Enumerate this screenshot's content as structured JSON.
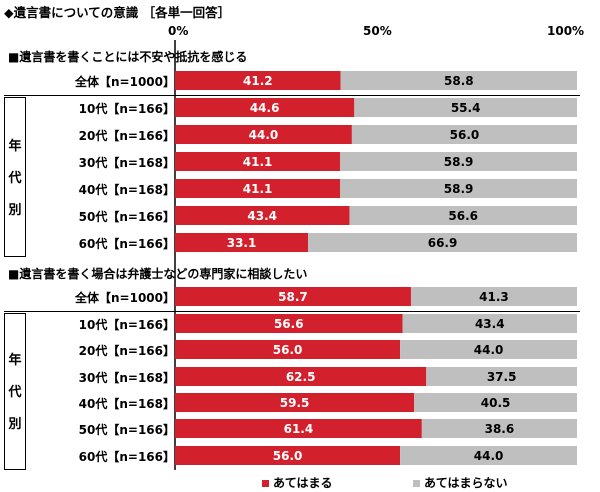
{
  "chart_data": {
    "type": "bar",
    "stacked": true,
    "orientation": "horizontal",
    "title": "◆遺言書についての意識 ［各単一回答］",
    "xticks": [
      "0%",
      "50%",
      "100%"
    ],
    "xlim": [
      0,
      100
    ],
    "colors": {
      "agree": "#d3202d",
      "disagree": "#bfbfbf"
    },
    "legend": {
      "position": "bottom",
      "agree": "あてはまる",
      "disagree": "あてはまらない"
    },
    "group_label": [
      "年",
      "代",
      "別"
    ],
    "sections": [
      {
        "title": "■遺言書を書くことには不安や抵抗を感じる",
        "rows": [
          {
            "label": "全体【n=1000】",
            "agree": 41.2,
            "disagree": 58.8
          },
          {
            "label": "10代【n=166】",
            "agree": 44.6,
            "disagree": 55.4
          },
          {
            "label": "20代【n=166】",
            "agree": 44.0,
            "disagree": 56.0
          },
          {
            "label": "30代【n=168】",
            "agree": 41.1,
            "disagree": 58.9
          },
          {
            "label": "40代【n=168】",
            "agree": 41.1,
            "disagree": 58.9
          },
          {
            "label": "50代【n=166】",
            "agree": 43.4,
            "disagree": 56.6
          },
          {
            "label": "60代【n=166】",
            "agree": 33.1,
            "disagree": 66.9
          }
        ]
      },
      {
        "title": "■遺言書を書く場合は弁護士などの専門家に相談したい",
        "rows": [
          {
            "label": "全体【n=1000】",
            "agree": 58.7,
            "disagree": 41.3
          },
          {
            "label": "10代【n=166】",
            "agree": 56.6,
            "disagree": 43.4
          },
          {
            "label": "20代【n=166】",
            "agree": 56.0,
            "disagree": 44.0
          },
          {
            "label": "30代【n=168】",
            "agree": 62.5,
            "disagree": 37.5
          },
          {
            "label": "40代【n=168】",
            "agree": 59.5,
            "disagree": 40.5
          },
          {
            "label": "50代【n=166】",
            "agree": 61.4,
            "disagree": 38.6
          },
          {
            "label": "60代【n=166】",
            "agree": 56.0,
            "disagree": 44.0
          }
        ]
      }
    ]
  }
}
